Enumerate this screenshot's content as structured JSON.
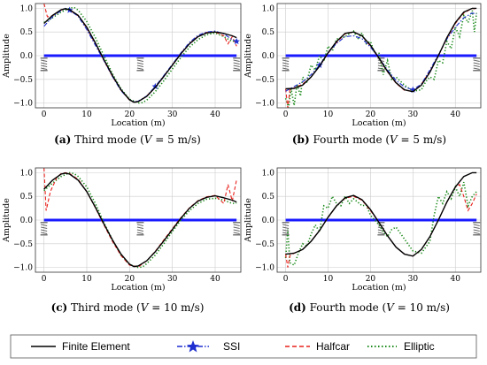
{
  "figure": {
    "captions": [
      {
        "letter": "(a)",
        "text": " Third mode (",
        "var": "V",
        "rest": " = 5 m/s)"
      },
      {
        "letter": "(b)",
        "text": " Fourth mode (",
        "var": "V",
        "rest": " = 5 m/s)"
      },
      {
        "letter": "(c)",
        "text": " Third mode (",
        "var": "V",
        "rest": " = 10 m/s)"
      },
      {
        "letter": "(d)",
        "text": " Fourth mode (",
        "var": "V",
        "rest": " = 10 m/s)"
      }
    ],
    "legend": [
      {
        "name": "Finite Element",
        "color": "#000000",
        "style": "solid"
      },
      {
        "name": "SSI",
        "color": "#1f2fd0",
        "style": "dashdot-star"
      },
      {
        "name": "Halfcar",
        "color": "#e8201b",
        "style": "dashed"
      },
      {
        "name": "Elliptic",
        "color": "#1a8a1a",
        "style": "dotted"
      }
    ]
  },
  "chart_data": [
    {
      "type": "line",
      "xlabel": "Location (m)",
      "ylabel": "Amplitude",
      "xlim": [
        -2,
        46
      ],
      "ylim": [
        -1.1,
        1.1
      ],
      "xticks": [
        0,
        10,
        20,
        30,
        40
      ],
      "yticks": [
        -1.0,
        -0.5,
        0.0,
        0.5,
        1.0
      ],
      "ytick_labels": [
        "−1.0",
        "−0.5",
        "0.0",
        "0.5",
        "1.0"
      ],
      "grid": true,
      "supports_x": [
        0,
        22.5,
        45
      ],
      "series": [
        {
          "name": "Finite Element",
          "x": [
            0,
            2,
            4,
            5,
            6,
            8,
            10,
            12,
            14,
            16,
            18,
            20,
            21,
            22,
            24,
            26,
            28,
            30,
            32,
            34,
            36,
            38,
            40,
            42,
            44,
            45
          ],
          "y": [
            0.68,
            0.85,
            0.97,
            0.99,
            0.97,
            0.85,
            0.6,
            0.27,
            -0.08,
            -0.42,
            -0.72,
            -0.93,
            -0.98,
            -0.97,
            -0.86,
            -0.67,
            -0.44,
            -0.2,
            0.04,
            0.25,
            0.4,
            0.48,
            0.5,
            0.47,
            0.42,
            0.38
          ]
        },
        {
          "name": "SSI",
          "x": [
            0,
            2,
            4,
            5,
            6,
            8,
            10,
            12,
            14,
            16,
            18,
            20,
            21,
            22,
            24,
            26,
            28,
            30,
            32,
            34,
            36,
            38,
            40,
            42,
            44,
            45
          ],
          "y": [
            0.62,
            0.82,
            0.95,
            1.0,
            0.96,
            0.83,
            0.55,
            0.22,
            -0.1,
            -0.44,
            -0.74,
            -0.93,
            -0.97,
            -0.96,
            -0.85,
            -0.65,
            -0.42,
            -0.18,
            0.06,
            0.28,
            0.43,
            0.5,
            0.52,
            0.46,
            0.34,
            0.3
          ]
        },
        {
          "name": "Halfcar",
          "x": [
            0,
            0.8,
            2,
            4,
            5,
            6,
            8,
            10,
            12,
            14,
            16,
            18,
            20,
            21,
            22,
            24,
            26,
            28,
            30,
            32,
            34,
            36,
            38,
            40,
            42,
            43,
            44,
            45
          ],
          "y": [
            1.1,
            0.82,
            0.84,
            0.96,
            0.99,
            0.96,
            0.84,
            0.58,
            0.25,
            -0.1,
            -0.44,
            -0.73,
            -0.94,
            -0.98,
            -0.97,
            -0.85,
            -0.66,
            -0.43,
            -0.19,
            0.05,
            0.26,
            0.41,
            0.49,
            0.5,
            0.42,
            0.25,
            0.4,
            0.2
          ]
        },
        {
          "name": "Elliptic",
          "x": [
            0,
            2,
            4,
            6,
            7,
            8,
            10,
            12,
            14,
            16,
            18,
            20,
            22,
            23,
            24,
            26,
            28,
            30,
            32,
            34,
            36,
            38,
            40,
            42,
            44,
            45
          ],
          "y": [
            0.7,
            0.8,
            0.92,
            1.0,
            1.02,
            0.96,
            0.72,
            0.38,
            0.0,
            -0.38,
            -0.7,
            -0.92,
            -1.0,
            -0.99,
            -0.94,
            -0.76,
            -0.53,
            -0.28,
            -0.04,
            0.18,
            0.34,
            0.44,
            0.48,
            0.4,
            0.3,
            0.33
          ]
        }
      ]
    },
    {
      "type": "line",
      "xlabel": "Location (m)",
      "ylabel": "Amplitude",
      "xlim": [
        -2,
        46
      ],
      "ylim": [
        -1.1,
        1.1
      ],
      "xticks": [
        0,
        10,
        20,
        30,
        40
      ],
      "yticks": [
        -1.0,
        -0.5,
        0.0,
        0.5,
        1.0
      ],
      "ytick_labels": [
        "−1.0",
        "−0.5",
        "0.0",
        "0.5",
        "1.0"
      ],
      "grid": true,
      "supports_x": [
        0,
        22.5,
        45
      ],
      "series": [
        {
          "name": "Finite Element",
          "x": [
            0,
            2,
            4,
            6,
            8,
            10,
            12,
            14,
            16,
            18,
            20,
            22,
            24,
            26,
            28,
            30,
            32,
            34,
            36,
            38,
            40,
            42,
            44,
            45
          ],
          "y": [
            -0.7,
            -0.69,
            -0.62,
            -0.45,
            -0.22,
            0.06,
            0.3,
            0.47,
            0.5,
            0.42,
            0.22,
            -0.05,
            -0.33,
            -0.57,
            -0.72,
            -0.76,
            -0.62,
            -0.35,
            0.0,
            0.38,
            0.7,
            0.92,
            1.0,
            1.0
          ]
        },
        {
          "name": "SSI",
          "x": [
            0,
            2,
            4,
            6,
            8,
            10,
            12,
            14,
            16,
            18,
            20,
            22,
            24,
            26,
            28,
            30,
            32,
            34,
            36,
            38,
            40,
            42,
            44,
            45
          ],
          "y": [
            -0.75,
            -0.65,
            -0.55,
            -0.4,
            -0.2,
            0.06,
            0.26,
            0.4,
            0.42,
            0.36,
            0.18,
            -0.05,
            -0.3,
            -0.52,
            -0.66,
            -0.72,
            -0.6,
            -0.3,
            0.02,
            0.35,
            0.6,
            0.8,
            0.9,
            0.88
          ]
        },
        {
          "name": "Halfcar",
          "x": [
            0,
            0.5,
            1,
            2,
            4,
            6,
            8,
            10,
            12,
            14,
            16,
            18,
            20,
            22,
            24,
            26,
            28,
            30,
            32,
            34,
            36,
            38,
            40,
            42,
            44,
            45
          ],
          "y": [
            -0.7,
            -1.1,
            -0.72,
            -0.68,
            -0.6,
            -0.45,
            -0.22,
            0.05,
            0.28,
            0.46,
            0.5,
            0.42,
            0.2,
            -0.06,
            -0.34,
            -0.58,
            -0.73,
            -0.75,
            -0.6,
            -0.33,
            0.0,
            0.36,
            0.68,
            0.9,
            1.0,
            0.98
          ]
        },
        {
          "name": "Elliptic",
          "x": [
            0,
            0.7,
            1.3,
            2,
            2.7,
            3.5,
            4,
            5,
            6,
            7,
            8,
            9,
            10,
            11,
            12,
            14,
            16,
            17,
            18,
            19,
            20,
            21,
            22,
            23,
            24,
            25,
            26,
            28,
            30,
            32,
            33,
            34,
            35,
            36,
            37,
            38,
            39,
            40,
            41,
            42,
            43,
            44,
            44.5,
            45
          ],
          "y": [
            -0.9,
            -1.1,
            -0.7,
            -1.05,
            -0.6,
            -0.85,
            -0.45,
            -0.55,
            -0.2,
            -0.3,
            0.0,
            -0.12,
            0.2,
            0.1,
            0.35,
            0.4,
            0.52,
            0.35,
            0.48,
            0.25,
            0.3,
            0.05,
            0.05,
            -0.4,
            -0.1,
            -0.5,
            -0.45,
            -0.62,
            -0.75,
            -0.72,
            -0.55,
            -0.45,
            -0.5,
            -0.1,
            -0.15,
            0.3,
            0.15,
            0.6,
            0.4,
            0.85,
            0.7,
            0.95,
            0.5,
            0.9
          ]
        }
      ]
    },
    {
      "type": "line",
      "xlabel": "Location (m)",
      "ylabel": "Amplitude",
      "xlim": [
        -2,
        46
      ],
      "ylim": [
        -1.1,
        1.1
      ],
      "xticks": [
        0,
        10,
        20,
        30,
        40
      ],
      "yticks": [
        -1.0,
        -0.5,
        0.0,
        0.5,
        1.0
      ],
      "ytick_labels": [
        "−1.0",
        "−0.5",
        "0.0",
        "0.5",
        "1.0"
      ],
      "grid": true,
      "supports_x": [
        0,
        22.5,
        45
      ],
      "series": [
        {
          "name": "Finite Element",
          "x": [
            0,
            2,
            4,
            5,
            6,
            8,
            10,
            12,
            14,
            16,
            18,
            20,
            21,
            22,
            24,
            26,
            28,
            30,
            32,
            34,
            36,
            38,
            40,
            42,
            44,
            45
          ],
          "y": [
            0.65,
            0.84,
            0.97,
            0.99,
            0.97,
            0.84,
            0.6,
            0.27,
            -0.08,
            -0.42,
            -0.72,
            -0.93,
            -0.98,
            -0.97,
            -0.86,
            -0.67,
            -0.44,
            -0.2,
            0.04,
            0.25,
            0.4,
            0.48,
            0.51,
            0.47,
            0.42,
            0.38
          ]
        },
        {
          "name": "Halfcar",
          "x": [
            0,
            0.5,
            1.5,
            3,
            4,
            5,
            6,
            8,
            10,
            12,
            14,
            16,
            18,
            20,
            22,
            24,
            26,
            28,
            30,
            32,
            34,
            36,
            38,
            40,
            42,
            43,
            44,
            45
          ],
          "y": [
            1.1,
            0.2,
            0.6,
            0.9,
            0.98,
            1.0,
            0.98,
            0.86,
            0.6,
            0.26,
            -0.1,
            -0.45,
            -0.75,
            -0.95,
            -0.99,
            -0.86,
            -0.66,
            -0.42,
            -0.18,
            0.05,
            0.26,
            0.41,
            0.49,
            0.52,
            0.35,
            0.75,
            0.4,
            0.85
          ]
        },
        {
          "name": "Elliptic",
          "x": [
            0,
            2,
            4,
            6,
            7,
            8,
            10,
            12,
            14,
            16,
            18,
            20,
            22,
            23,
            24,
            26,
            28,
            30,
            32,
            34,
            36,
            38,
            40,
            42,
            44,
            45
          ],
          "y": [
            0.62,
            0.78,
            0.92,
            1.0,
            0.98,
            0.92,
            0.7,
            0.35,
            -0.05,
            -0.42,
            -0.74,
            -0.94,
            -1.0,
            -0.99,
            -0.92,
            -0.74,
            -0.5,
            -0.24,
            0.0,
            0.2,
            0.35,
            0.44,
            0.46,
            0.42,
            0.35,
            0.36
          ]
        }
      ]
    },
    {
      "type": "line",
      "xlabel": "Location (m)",
      "ylabel": "Amplitude",
      "xlim": [
        -2,
        46
      ],
      "ylim": [
        -1.1,
        1.1
      ],
      "xticks": [
        0,
        10,
        20,
        30,
        40
      ],
      "yticks": [
        -1.0,
        -0.5,
        0.0,
        0.5,
        1.0
      ],
      "ytick_labels": [
        "−1.0",
        "−0.5",
        "0.0",
        "0.5",
        "1.0"
      ],
      "grid": true,
      "supports_x": [
        0,
        22.5,
        45
      ],
      "series": [
        {
          "name": "Finite Element",
          "x": [
            0,
            2,
            4,
            6,
            8,
            10,
            12,
            14,
            16,
            18,
            20,
            22,
            24,
            26,
            28,
            30,
            32,
            34,
            36,
            38,
            40,
            42,
            44,
            45
          ],
          "y": [
            -0.72,
            -0.7,
            -0.62,
            -0.45,
            -0.22,
            0.06,
            0.3,
            0.47,
            0.52,
            0.43,
            0.22,
            -0.05,
            -0.33,
            -0.57,
            -0.72,
            -0.76,
            -0.62,
            -0.35,
            0.0,
            0.38,
            0.7,
            0.92,
            1.0,
            1.0
          ]
        },
        {
          "name": "Halfcar",
          "x": [
            0,
            0.5,
            1,
            2,
            4,
            6,
            8,
            10,
            12,
            14,
            16,
            18,
            20,
            22,
            24,
            26,
            28,
            30,
            32,
            34,
            36,
            38,
            40,
            41,
            42,
            43,
            44,
            45
          ],
          "y": [
            -0.72,
            -1.0,
            -0.75,
            -0.7,
            -0.62,
            -0.45,
            -0.22,
            0.05,
            0.3,
            0.46,
            0.5,
            0.42,
            0.2,
            -0.05,
            -0.33,
            -0.57,
            -0.72,
            -0.76,
            -0.62,
            -0.35,
            0.0,
            0.38,
            0.7,
            0.75,
            0.5,
            0.2,
            0.35,
            0.55
          ]
        },
        {
          "name": "Elliptic",
          "x": [
            0,
            0.5,
            1,
            2,
            3,
            4,
            5,
            6,
            7,
            8,
            9,
            10,
            11,
            12,
            13,
            14,
            15,
            16,
            17,
            18,
            19,
            20,
            21,
            22,
            23,
            24,
            25,
            26,
            28,
            30,
            32,
            34,
            35,
            36,
            37,
            38,
            39,
            40,
            41,
            42,
            43,
            44,
            45
          ],
          "y": [
            -0.8,
            -0.2,
            -0.9,
            -0.95,
            -0.7,
            -0.5,
            -0.55,
            -0.3,
            -0.1,
            -0.25,
            0.3,
            0.25,
            0.5,
            0.35,
            0.3,
            0.5,
            0.35,
            0.45,
            0.38,
            0.3,
            0.32,
            0.1,
            0.0,
            -0.1,
            -0.25,
            -0.35,
            -0.2,
            -0.15,
            -0.4,
            -0.65,
            -0.7,
            -0.45,
            0.1,
            0.5,
            0.35,
            0.6,
            0.45,
            0.7,
            0.5,
            0.8,
            0.3,
            0.5,
            0.6
          ]
        }
      ]
    }
  ]
}
